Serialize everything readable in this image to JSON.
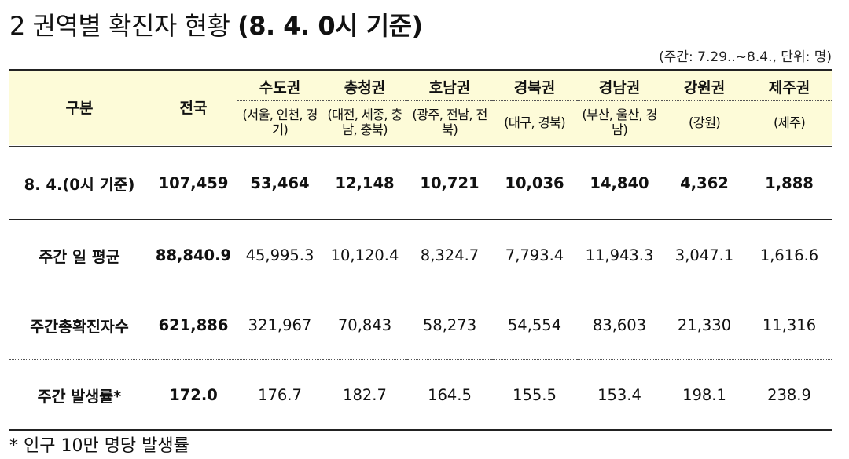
{
  "title": {
    "main": "2  권역별 확진자 현황 ",
    "date": "(8. 4. 0시 기준)"
  },
  "unit": "(주간: 7.29..~8.4., 단위: 명)",
  "table": {
    "corner": "구분",
    "national": "전국",
    "regions": [
      {
        "name": "수도권",
        "areas": "(서울, 인천, 경기)"
      },
      {
        "name": "충청권",
        "areas": "(대전, 세종, 충남, 충북)"
      },
      {
        "name": "호남권",
        "areas": "(광주, 전남, 전북)"
      },
      {
        "name": "경북권",
        "areas": "(대구, 경북)"
      },
      {
        "name": "경남권",
        "areas": "(부산, 울산, 경남)"
      },
      {
        "name": "강원권",
        "areas": "(강원)"
      },
      {
        "name": "제주권",
        "areas": "(제주)"
      }
    ],
    "rows": [
      {
        "label": "8. 4.(0시 기준)",
        "national": "107,459",
        "values": [
          "53,464",
          "12,148",
          "10,721",
          "10,036",
          "14,840",
          "4,362",
          "1,888"
        ]
      },
      {
        "label": "주간 일 평균",
        "national": "88,840.9",
        "values": [
          "45,995.3",
          "10,120.4",
          "8,324.7",
          "7,793.4",
          "11,943.3",
          "3,047.1",
          "1,616.6"
        ]
      },
      {
        "label": "주간총확진자수",
        "national": "621,886",
        "values": [
          "321,967",
          "70,843",
          "58,273",
          "54,554",
          "83,603",
          "21,330",
          "11,316"
        ]
      },
      {
        "label": "주간 발생률*",
        "national": "172.0",
        "values": [
          "176.7",
          "182.7",
          "164.5",
          "155.5",
          "153.4",
          "198.1",
          "238.9"
        ]
      }
    ]
  },
  "footnote": "* 인구 10만 명당 발생률"
}
